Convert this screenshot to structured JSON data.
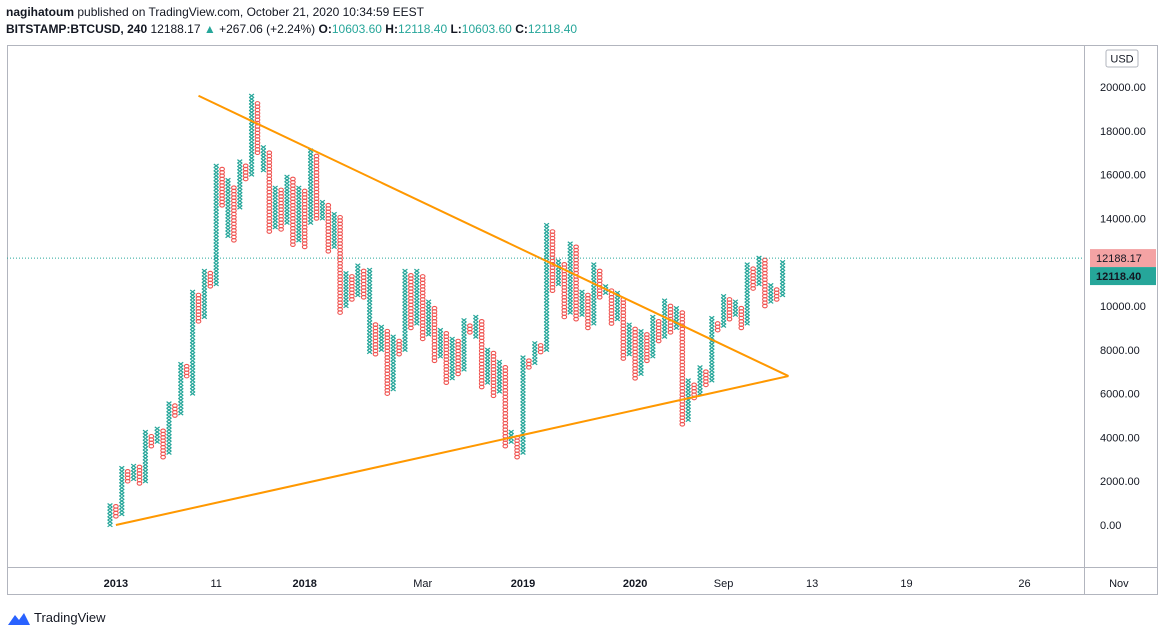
{
  "header": {
    "author": "nagihatoum",
    "published_text": "published on TradingView.com, October 21, 2020 10:34:59 EEST",
    "symbol": "BITSTAMP:BTCUSD, 240",
    "last": "12188.17",
    "change_arrow": "▲",
    "change": "+267.06 (+2.24%)",
    "o_label": "O:",
    "o_value": "10603.60",
    "h_label": "H:",
    "h_value": "12118.40",
    "l_label": "L:",
    "l_value": "10603.60",
    "c_label": "C:",
    "c_value": "12118.40"
  },
  "footer": {
    "brand": "TradingView",
    "logo_icon": "tradingview-logo-icon"
  },
  "chart_data": {
    "type": "point-and-figure",
    "currency": "USD",
    "y_axis": {
      "min": -1500,
      "max": 21500,
      "ticks": [
        "0.00",
        "2000.00",
        "4000.00",
        "6000.00",
        "8000.00",
        "10000.00",
        "12000.00",
        "14000.00",
        "16000.00",
        "18000.00",
        "20000.00"
      ],
      "tick_values": [
        0,
        2000,
        4000,
        6000,
        8000,
        10000,
        12000,
        14000,
        16000,
        18000,
        20000
      ]
    },
    "x_axis": {
      "labels": [
        {
          "text": "2013",
          "bold": true,
          "col": 1
        },
        {
          "text": "11",
          "bold": false,
          "col": 18
        },
        {
          "text": "2018",
          "bold": true,
          "col": 33
        },
        {
          "text": "Mar",
          "bold": false,
          "col": 53
        },
        {
          "text": "2019",
          "bold": true,
          "col": 70
        },
        {
          "text": "2020",
          "bold": true,
          "col": 89
        },
        {
          "text": "Sep",
          "bold": false,
          "col": 104
        },
        {
          "text": "13",
          "bold": false,
          "col": 119
        },
        {
          "text": "19",
          "bold": false,
          "col": 135
        },
        {
          "text": "26",
          "bold": false,
          "col": 155
        },
        {
          "text": "Nov",
          "bold": false,
          "col": 171
        }
      ],
      "total_cols": 180
    },
    "last_price_label": "12188.17",
    "close_price_label": "12118.40",
    "last_price_value": 12188.17,
    "close_price_value": 12118.4,
    "box_size": 150,
    "columns": [
      {
        "dir": "x",
        "low": 0,
        "high": 1000
      },
      {
        "dir": "o",
        "low": 400,
        "high": 900
      },
      {
        "dir": "x",
        "low": 500,
        "high": 2600
      },
      {
        "dir": "o",
        "low": 2000,
        "high": 2500
      },
      {
        "dir": "x",
        "low": 2100,
        "high": 2800
      },
      {
        "dir": "o",
        "low": 1900,
        "high": 2700
      },
      {
        "dir": "x",
        "low": 2000,
        "high": 4300
      },
      {
        "dir": "o",
        "low": 3600,
        "high": 4100
      },
      {
        "dir": "x",
        "low": 3800,
        "high": 4500
      },
      {
        "dir": "o",
        "low": 3100,
        "high": 4300
      },
      {
        "dir": "x",
        "low": 3300,
        "high": 5600
      },
      {
        "dir": "o",
        "low": 5000,
        "high": 5500
      },
      {
        "dir": "x",
        "low": 5100,
        "high": 7400
      },
      {
        "dir": "o",
        "low": 6800,
        "high": 7300
      },
      {
        "dir": "x",
        "low": 6000,
        "high": 10700
      },
      {
        "dir": "o",
        "low": 9300,
        "high": 10500
      },
      {
        "dir": "x",
        "low": 9500,
        "high": 11600
      },
      {
        "dir": "o",
        "low": 10900,
        "high": 11500
      },
      {
        "dir": "x",
        "low": 11000,
        "high": 16500
      },
      {
        "dir": "o",
        "low": 14600,
        "high": 16300
      },
      {
        "dir": "x",
        "low": 13200,
        "high": 15800
      },
      {
        "dir": "o",
        "low": 13000,
        "high": 15500
      },
      {
        "dir": "x",
        "low": 14500,
        "high": 16600
      },
      {
        "dir": "o",
        "low": 15800,
        "high": 16400
      },
      {
        "dir": "x",
        "low": 16000,
        "high": 19600
      },
      {
        "dir": "o",
        "low": 17000,
        "high": 19300
      },
      {
        "dir": "x",
        "low": 16200,
        "high": 17300
      },
      {
        "dir": "o",
        "low": 13400,
        "high": 17100
      },
      {
        "dir": "x",
        "low": 13600,
        "high": 15500
      },
      {
        "dir": "o",
        "low": 13500,
        "high": 15300
      },
      {
        "dir": "x",
        "low": 13800,
        "high": 16000
      },
      {
        "dir": "o",
        "low": 12800,
        "high": 15800
      },
      {
        "dir": "x",
        "low": 13000,
        "high": 15500
      },
      {
        "dir": "o",
        "low": 12700,
        "high": 15300
      },
      {
        "dir": "x",
        "low": 13800,
        "high": 17100
      },
      {
        "dir": "o",
        "low": 14000,
        "high": 16900
      },
      {
        "dir": "x",
        "low": 14000,
        "high": 14800
      },
      {
        "dir": "o",
        "low": 12500,
        "high": 14600
      },
      {
        "dir": "x",
        "low": 12700,
        "high": 14300
      },
      {
        "dir": "o",
        "low": 9700,
        "high": 14100
      },
      {
        "dir": "x",
        "low": 10000,
        "high": 11600
      },
      {
        "dir": "o",
        "low": 10300,
        "high": 11400
      },
      {
        "dir": "x",
        "low": 10500,
        "high": 11900
      },
      {
        "dir": "o",
        "low": 10400,
        "high": 11700
      },
      {
        "dir": "x",
        "low": 7900,
        "high": 11700
      },
      {
        "dir": "o",
        "low": 7800,
        "high": 9200
      },
      {
        "dir": "x",
        "low": 8000,
        "high": 9100
      },
      {
        "dir": "o",
        "low": 6000,
        "high": 8900
      },
      {
        "dir": "x",
        "low": 6200,
        "high": 8700
      },
      {
        "dir": "o",
        "low": 7800,
        "high": 8500
      },
      {
        "dir": "x",
        "low": 8000,
        "high": 11700
      },
      {
        "dir": "o",
        "low": 9000,
        "high": 11500
      },
      {
        "dir": "x",
        "low": 9200,
        "high": 11600
      },
      {
        "dir": "o",
        "low": 8500,
        "high": 11400
      },
      {
        "dir": "x",
        "low": 8700,
        "high": 10200
      },
      {
        "dir": "o",
        "low": 7500,
        "high": 10000
      },
      {
        "dir": "x",
        "low": 7700,
        "high": 9000
      },
      {
        "dir": "o",
        "low": 6500,
        "high": 8800
      },
      {
        "dir": "x",
        "low": 6700,
        "high": 8600
      },
      {
        "dir": "o",
        "low": 6900,
        "high": 8500
      },
      {
        "dir": "x",
        "low": 7100,
        "high": 9400
      },
      {
        "dir": "o",
        "low": 8800,
        "high": 9200
      },
      {
        "dir": "x",
        "low": 8600,
        "high": 9500
      },
      {
        "dir": "o",
        "low": 6300,
        "high": 9300
      },
      {
        "dir": "x",
        "low": 6500,
        "high": 8100
      },
      {
        "dir": "o",
        "low": 5900,
        "high": 7900
      },
      {
        "dir": "x",
        "low": 6100,
        "high": 7500
      },
      {
        "dir": "o",
        "low": 3600,
        "high": 7300
      },
      {
        "dir": "x",
        "low": 3800,
        "high": 4300
      },
      {
        "dir": "o",
        "low": 3100,
        "high": 4100
      },
      {
        "dir": "x",
        "low": 3300,
        "high": 7700
      },
      {
        "dir": "o",
        "low": 7200,
        "high": 7500
      },
      {
        "dir": "x",
        "low": 7400,
        "high": 8400
      },
      {
        "dir": "o",
        "low": 7900,
        "high": 8200
      },
      {
        "dir": "x",
        "low": 8000,
        "high": 13800
      },
      {
        "dir": "o",
        "low": 10700,
        "high": 13500
      },
      {
        "dir": "x",
        "low": 11000,
        "high": 12100
      },
      {
        "dir": "o",
        "low": 9500,
        "high": 11900
      },
      {
        "dir": "x",
        "low": 9700,
        "high": 12900
      },
      {
        "dir": "o",
        "low": 9400,
        "high": 12700
      },
      {
        "dir": "x",
        "low": 9600,
        "high": 10700
      },
      {
        "dir": "o",
        "low": 9000,
        "high": 10500
      },
      {
        "dir": "x",
        "low": 9200,
        "high": 11900
      },
      {
        "dir": "o",
        "low": 10400,
        "high": 11700
      },
      {
        "dir": "x",
        "low": 10600,
        "high": 11000
      },
      {
        "dir": "o",
        "low": 9200,
        "high": 10800
      },
      {
        "dir": "x",
        "low": 9400,
        "high": 10600
      },
      {
        "dir": "o",
        "low": 7600,
        "high": 10400
      },
      {
        "dir": "x",
        "low": 7800,
        "high": 9200
      },
      {
        "dir": "o",
        "low": 6700,
        "high": 9000
      },
      {
        "dir": "x",
        "low": 6900,
        "high": 8900
      },
      {
        "dir": "o",
        "low": 7500,
        "high": 8700
      },
      {
        "dir": "x",
        "low": 7700,
        "high": 9500
      },
      {
        "dir": "o",
        "low": 8400,
        "high": 9300
      },
      {
        "dir": "x",
        "low": 8600,
        "high": 10300
      },
      {
        "dir": "o",
        "low": 8800,
        "high": 10100
      },
      {
        "dir": "x",
        "low": 9000,
        "high": 9900
      },
      {
        "dir": "o",
        "low": 4600,
        "high": 9700
      },
      {
        "dir": "x",
        "low": 4800,
        "high": 6700
      },
      {
        "dir": "o",
        "low": 5800,
        "high": 6500
      },
      {
        "dir": "x",
        "low": 6000,
        "high": 7300
      },
      {
        "dir": "o",
        "low": 6400,
        "high": 7100
      },
      {
        "dir": "x",
        "low": 6600,
        "high": 9500
      },
      {
        "dir": "o",
        "low": 8900,
        "high": 9300
      },
      {
        "dir": "x",
        "low": 9100,
        "high": 10500
      },
      {
        "dir": "o",
        "low": 9400,
        "high": 10300
      },
      {
        "dir": "x",
        "low": 9600,
        "high": 10200
      },
      {
        "dir": "o",
        "low": 9000,
        "high": 10000
      },
      {
        "dir": "x",
        "low": 9200,
        "high": 11900
      },
      {
        "dir": "o",
        "low": 10800,
        "high": 11700
      },
      {
        "dir": "x",
        "low": 11000,
        "high": 12300
      },
      {
        "dir": "o",
        "low": 10000,
        "high": 12100
      },
      {
        "dir": "x",
        "low": 10200,
        "high": 11000
      },
      {
        "dir": "o",
        "low": 10300,
        "high": 10800
      },
      {
        "dir": "x",
        "low": 10500,
        "high": 12100
      }
    ],
    "trendlines": [
      {
        "name": "upper",
        "color": "#ff9800",
        "from": {
          "col": 15,
          "value": 19600
        },
        "to": {
          "col": 115,
          "value": 6800
        }
      },
      {
        "name": "lower",
        "color": "#ff9800",
        "from": {
          "col": 1,
          "value": 0
        },
        "to": {
          "col": 115,
          "value": 6800
        }
      }
    ],
    "up_color": "#26a69a",
    "down_color": "#ef5350"
  }
}
